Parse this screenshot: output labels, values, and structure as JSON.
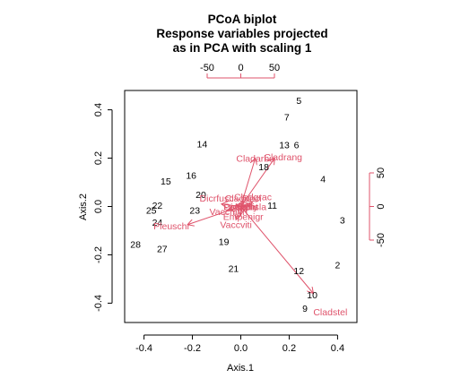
{
  "chart_data": {
    "type": "scatter",
    "title_lines": [
      "PCoA biplot",
      "Response variables projected",
      "as in PCA with scaling 1"
    ],
    "xlabel": "Axis.1",
    "ylabel": "Axis.2",
    "xlim": [
      -0.48,
      0.48
    ],
    "ylim": [
      -0.48,
      0.48
    ],
    "x_ticks": [
      -0.4,
      -0.2,
      0.0,
      0.2,
      0.4
    ],
    "x_tick_labels": [
      "-0.4",
      "-0.2",
      "0.0",
      "0.2",
      "0.4"
    ],
    "y_ticks": [
      -0.4,
      -0.2,
      0.0,
      0.2,
      0.4
    ],
    "y_tick_labels": [
      "-0.4",
      "-0.2",
      "0.0",
      "0.2",
      "0.4"
    ],
    "top_axis": {
      "ticks": [
        -50,
        0,
        50
      ],
      "tick_labels": [
        "-50",
        "0",
        "50"
      ],
      "scale_per_unit": 0.00278
    },
    "right_axis": {
      "ticks": [
        -50,
        0,
        50
      ],
      "tick_labels": [
        "-50",
        "0",
        "50"
      ],
      "scale_per_unit": 0.00278
    },
    "site_color": "#000000",
    "arrow_color": "#DF536B",
    "sites": [
      {
        "label": "5",
        "x": 0.24,
        "y": 0.44
      },
      {
        "label": "7",
        "x": 0.19,
        "y": 0.37
      },
      {
        "label": "14",
        "x": -0.16,
        "y": 0.26
      },
      {
        "label": "13",
        "x": 0.18,
        "y": 0.255
      },
      {
        "label": "6",
        "x": 0.23,
        "y": 0.255
      },
      {
        "label": "18",
        "x": 0.095,
        "y": 0.165
      },
      {
        "label": "4",
        "x": 0.34,
        "y": 0.115
      },
      {
        "label": "15",
        "x": -0.31,
        "y": 0.105
      },
      {
        "label": "16",
        "x": -0.205,
        "y": 0.13
      },
      {
        "label": "20",
        "x": -0.165,
        "y": 0.05
      },
      {
        "label": "11",
        "x": 0.13,
        "y": 0.005
      },
      {
        "label": "22",
        "x": -0.345,
        "y": 0.005
      },
      {
        "label": "25",
        "x": -0.37,
        "y": -0.015
      },
      {
        "label": "23",
        "x": -0.19,
        "y": -0.015
      },
      {
        "label": "3",
        "x": 0.42,
        "y": -0.055
      },
      {
        "label": "24",
        "x": -0.345,
        "y": -0.065
      },
      {
        "label": "19",
        "x": -0.07,
        "y": -0.145
      },
      {
        "label": "28",
        "x": -0.435,
        "y": -0.155
      },
      {
        "label": "27",
        "x": -0.325,
        "y": -0.175
      },
      {
        "label": "2",
        "x": 0.4,
        "y": -0.24
      },
      {
        "label": "21",
        "x": -0.03,
        "y": -0.255
      },
      {
        "label": "12",
        "x": 0.24,
        "y": -0.265
      },
      {
        "label": "10",
        "x": 0.295,
        "y": -0.365
      },
      {
        "label": "9",
        "x": 0.265,
        "y": -0.42
      }
    ],
    "species": [
      {
        "label": "Cladarbu",
        "x": 0.06,
        "y": 0.2,
        "tx": 0.06,
        "ty": 0.2
      },
      {
        "label": "Cladrang",
        "x": 0.14,
        "y": 0.2,
        "tx": 0.175,
        "ty": 0.205
      },
      {
        "label": "Cladstel",
        "x": 0.3,
        "y": -0.36,
        "tx": 0.37,
        "ty": -0.435
      },
      {
        "label": "Pleuschr",
        "x": -0.22,
        "y": -0.075,
        "tx": -0.285,
        "ty": -0.08
      },
      {
        "label": "Vaccviti",
        "x": -0.02,
        "y": -0.055,
        "tx": -0.02,
        "ty": -0.075
      },
      {
        "label": "Empenigr",
        "x": 0.0,
        "y": -0.035,
        "tx": 0.01,
        "ty": -0.04
      },
      {
        "label": "Dicrfusc",
        "x": -0.08,
        "y": 0.01,
        "tx": -0.1,
        "ty": 0.035
      },
      {
        "label": "Cladunci",
        "x": 0.01,
        "y": 0.025,
        "tx": 0.01,
        "ty": 0.035
      },
      {
        "label": "Vaccmyrt",
        "x": -0.05,
        "y": -0.015,
        "tx": -0.05,
        "ty": -0.02
      },
      {
        "label": "Cladgrac",
        "x": 0.05,
        "y": 0.02,
        "tx": 0.05,
        "ty": 0.04
      },
      {
        "label": "Dicrpoly",
        "x": 0.02,
        "y": 0.0,
        "tx": 0.0,
        "ty": 0.0
      },
      {
        "label": "Cetrisla",
        "x": 0.04,
        "y": 0.01,
        "tx": 0.04,
        "ty": 0.0
      },
      {
        "label": "Peltapht",
        "x": -0.02,
        "y": 0.005,
        "tx": 0.0,
        "ty": 0.0
      }
    ]
  }
}
